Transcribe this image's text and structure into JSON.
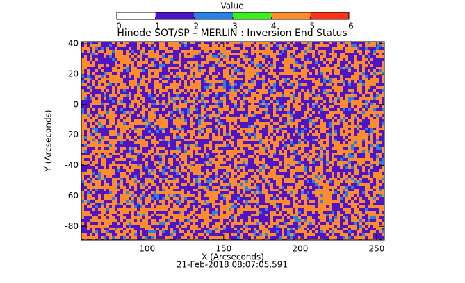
{
  "chart_data": {
    "type": "heatmap",
    "title": "Hinode SOT/SP – MERLIN : Inversion End Status",
    "x_label": "X (Arcseconds)",
    "y_label": "Y (Arcseconds)",
    "footer": "21-Feb-2018 08:07:05.591",
    "xlim": [
      57,
      255
    ],
    "ylim": [
      -89,
      41.4
    ],
    "xticks": [
      100,
      150,
      200,
      250
    ],
    "yticks": [
      40,
      20,
      0,
      -20,
      -40,
      -60,
      -80
    ],
    "colorbar": {
      "label": "Value",
      "ticks": [
        0,
        1,
        2,
        3,
        4,
        5,
        6
      ],
      "colors": [
        "#ffffff",
        "#5014c8",
        "#2882e6",
        "#3cf01e",
        "#ff8c2d",
        "#ff3214"
      ]
    }
  }
}
